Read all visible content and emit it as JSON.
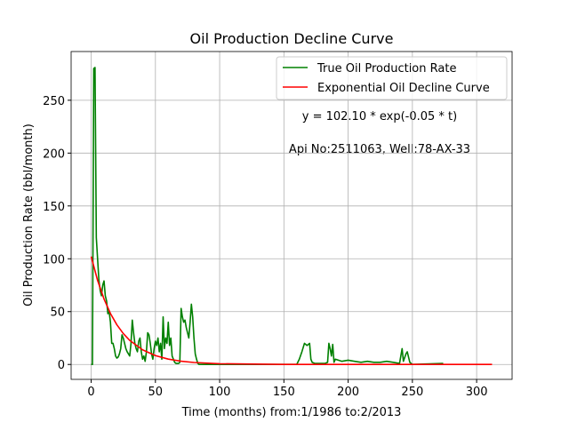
{
  "chart_data": {
    "type": "line",
    "title": "Oil Production Decline Curve",
    "xlabel": "Time (months) from:1/1986 to:2/2013",
    "ylabel": "Oil Production Rate (bbl/month)",
    "annotations": [
      "y = 102.10 * exp(-0.05 * t)",
      "Api No:2511063, Well:78-AX-33"
    ],
    "xlim": [
      -15.6,
      327.6
    ],
    "ylim": [
      -14.1,
      296.1
    ],
    "xticks": [
      0,
      50,
      100,
      150,
      200,
      250,
      300
    ],
    "yticks": [
      0,
      50,
      100,
      150,
      200,
      250
    ],
    "grid": true,
    "legend": "upper right",
    "series": [
      {
        "name": "True Oil Production Rate",
        "color": "#008000",
        "x": [
          0,
          1,
          2,
          3,
          4,
          5,
          6,
          7,
          8,
          9,
          10,
          11,
          12,
          13,
          14,
          15,
          16,
          17,
          18,
          19,
          20,
          21,
          22,
          23,
          24,
          25,
          26,
          27,
          28,
          29,
          30,
          31,
          32,
          33,
          34,
          35,
          36,
          37,
          38,
          39,
          40,
          41,
          42,
          43,
          44,
          45,
          46,
          47,
          48,
          49,
          50,
          51,
          52,
          53,
          54,
          55,
          56,
          57,
          58,
          59,
          60,
          61,
          62,
          63,
          64,
          65,
          66,
          67,
          68,
          69,
          70,
          71,
          72,
          73,
          74,
          75,
          76,
          77,
          78,
          79,
          80,
          81,
          82,
          83,
          84,
          160,
          162,
          164,
          166,
          168,
          170,
          171,
          172,
          174,
          182,
          184,
          185,
          186,
          187,
          188,
          189,
          190,
          195,
          200,
          205,
          210,
          215,
          220,
          225,
          230,
          235,
          240,
          242,
          243,
          245,
          246,
          248,
          250,
          274
        ],
        "values": [
          0,
          0,
          280,
          281,
          120,
          100,
          80,
          70,
          65,
          75,
          79,
          65,
          60,
          48,
          50,
          40,
          20,
          20,
          15,
          8,
          6,
          7,
          10,
          15,
          28,
          25,
          20,
          15,
          12,
          10,
          8,
          20,
          42,
          30,
          20,
          15,
          12,
          22,
          25,
          12,
          5,
          8,
          3,
          12,
          30,
          28,
          20,
          10,
          5,
          15,
          22,
          18,
          25,
          12,
          20,
          5,
          45,
          15,
          25,
          20,
          40,
          18,
          25,
          8,
          5,
          2,
          1,
          1,
          1,
          2,
          53,
          45,
          40,
          42,
          35,
          30,
          25,
          40,
          57,
          45,
          25,
          10,
          5,
          1,
          0,
          0,
          5,
          12,
          20,
          18,
          20,
          5,
          2,
          1,
          1,
          2,
          20,
          15,
          8,
          19,
          2,
          5,
          3,
          4,
          3,
          2,
          3,
          2,
          2,
          3,
          2,
          1,
          15,
          3,
          10,
          12,
          2,
          0,
          1
        ]
      },
      {
        "name": "Exponential Oil Decline Curve",
        "color": "#ff0000",
        "x": [
          0,
          5,
          10,
          15,
          20,
          25,
          30,
          40,
          50,
          60,
          70,
          80,
          100,
          150,
          200,
          250,
          312
        ],
        "values": [
          102.1,
          79.52,
          61.93,
          48.23,
          37.56,
          29.25,
          22.78,
          13.82,
          8.38,
          5.08,
          3.08,
          1.87,
          0.69,
          0.06,
          0.005,
          0.0004,
          2e-05
        ]
      }
    ]
  }
}
